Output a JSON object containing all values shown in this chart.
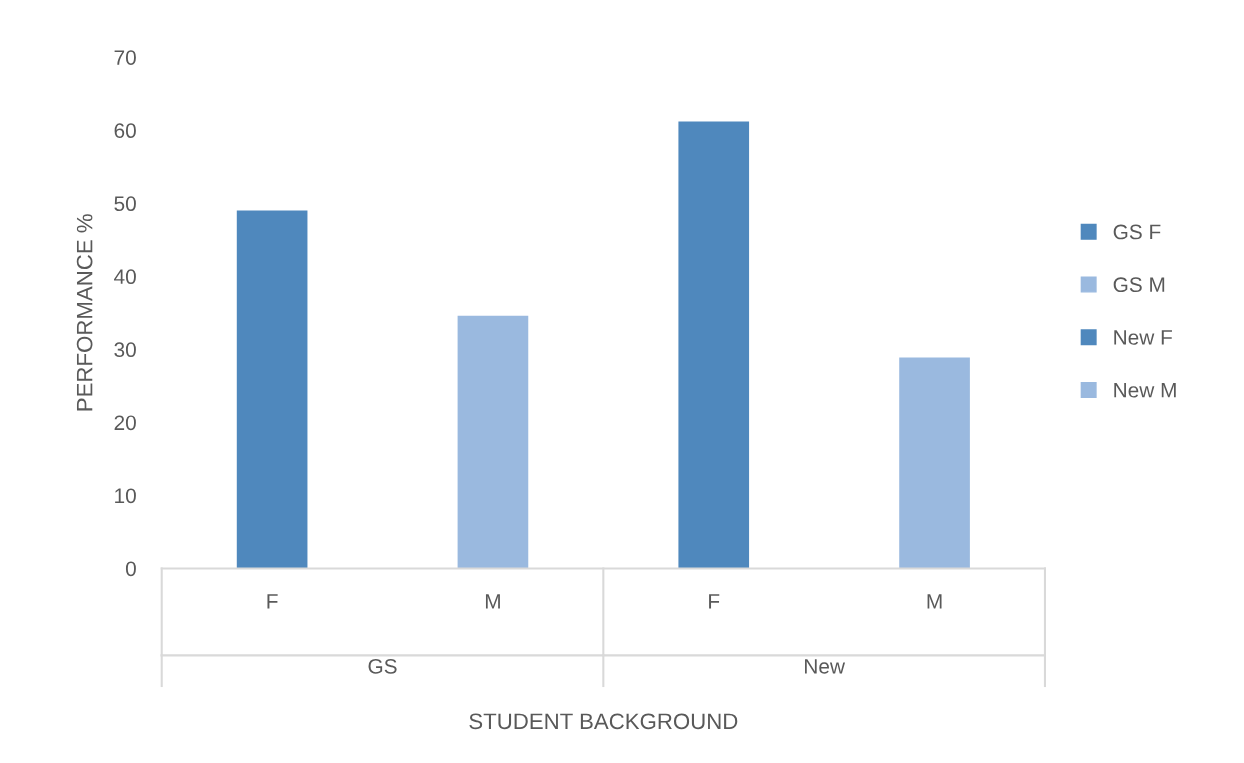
{
  "chart_data": {
    "type": "bar",
    "xlabel": "STUDENT BACKGROUND",
    "ylabel": "PERFORMANCE %",
    "categories": [
      "F",
      "M",
      "F",
      "M"
    ],
    "series": [
      {
        "name": "GS F",
        "color": "#4f88bd",
        "values": [
          49.0,
          null,
          null,
          null
        ]
      },
      {
        "name": "GS M",
        "color": "#9ab9df",
        "values": [
          null,
          34.6,
          null,
          null
        ]
      },
      {
        "name": "New F",
        "color": "#4f88bd",
        "values": [
          null,
          null,
          61.2,
          null
        ]
      },
      {
        "name": "New M",
        "color": "#9ab9df",
        "values": [
          null,
          null,
          null,
          28.9
        ]
      }
    ],
    "annotations": [
      "GS",
      "New"
    ],
    "ylim": [
      0,
      70
    ],
    "yticks": [
      0,
      10,
      20,
      30,
      40,
      50,
      60,
      70
    ],
    "grid": false,
    "legend": "right"
  }
}
